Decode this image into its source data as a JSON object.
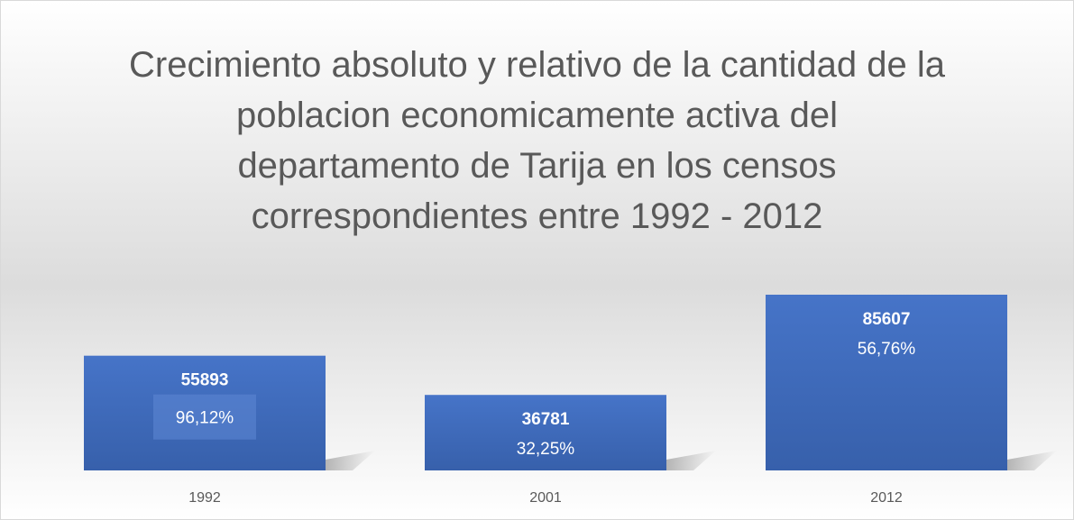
{
  "chart_data": {
    "type": "bar",
    "title": "Crecimiento absoluto y relativo de la cantidad de la poblacion economicamente activa del departamento de Tarija en los censos correspondientes entre 1992 - 2012",
    "categories": [
      "1992",
      "2001",
      "2012"
    ],
    "values": [
      55893,
      36781,
      85607
    ],
    "color": "#4472c4",
    "percentages": {
      "values": [
        96.12,
        32.25,
        56.76
      ],
      "value_labels": [
        "96,12%",
        "32,25%",
        "56,76%"
      ]
    }
  }
}
